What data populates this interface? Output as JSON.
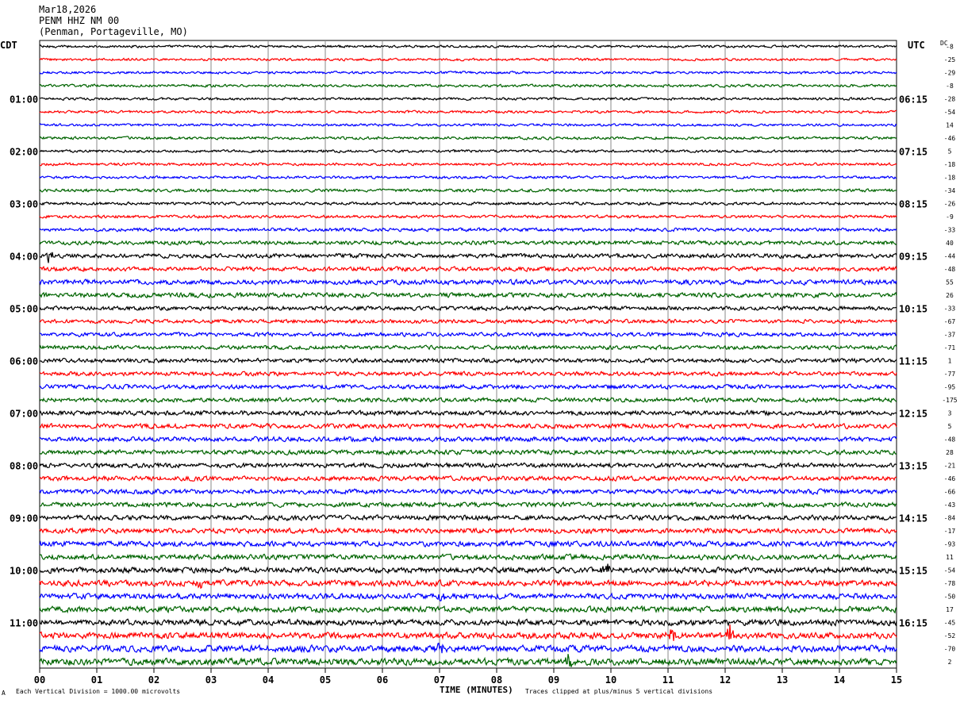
{
  "header": {
    "date": "Mar18,2026",
    "station": "PENM HHZ NM 00",
    "location": "(Penman, Portageville, MO)"
  },
  "left_tz": "CDT",
  "right_tz": "UTC",
  "dc_label": "DC",
  "footer": {
    "scale_note": "Each Vertical Division = 1000.00 microvolts",
    "xlabel": "TIME (MINUTES)",
    "clip_note": "Traces clipped at plus/minus 5 vertical divisions",
    "corner_mark": "A"
  },
  "colors": [
    "#000000",
    "#ff0000",
    "#0000ff",
    "#006400"
  ],
  "chart_data": {
    "type": "line",
    "x_ticks": [
      "00",
      "01",
      "02",
      "03",
      "04",
      "05",
      "06",
      "07",
      "08",
      "09",
      "10",
      "11",
      "12",
      "13",
      "14",
      "15"
    ],
    "xlim": [
      0,
      15
    ],
    "grid": true,
    "trace_count": 48,
    "left_hour_labels": [
      "01:00",
      "02:00",
      "03:00",
      "04:00",
      "05:00",
      "06:00",
      "07:00",
      "08:00",
      "09:00",
      "10:00",
      "11:00"
    ],
    "right_hour_labels": [
      "06:15",
      "07:15",
      "08:15",
      "09:15",
      "10:15",
      "11:15",
      "12:15",
      "13:15",
      "14:15",
      "15:15",
      "16:15"
    ],
    "dc_offsets": [
      "-8",
      "-25",
      "-29",
      "-8",
      "-28",
      "-54",
      "14",
      "-46",
      "5",
      "-18",
      "-18",
      "-34",
      "-26",
      "-9",
      "-33",
      "40",
      "-44",
      "-48",
      "55",
      "26",
      "-33",
      "-67",
      "-37",
      "-71",
      "1",
      "-77",
      "-95",
      "-175",
      "3",
      "5",
      "-48",
      "28",
      "-21",
      "-46",
      "-66",
      "-43",
      "-84",
      "-17",
      "-93",
      "11",
      "-54",
      "-78",
      "-50",
      "17",
      "-45",
      "-52",
      "-70",
      "2"
    ],
    "noise_amplitude": [
      1.6,
      1.6,
      1.6,
      1.8,
      1.7,
      1.7,
      1.6,
      1.8,
      1.7,
      1.7,
      1.7,
      2.0,
      1.9,
      1.9,
      2.2,
      2.6,
      2.8,
      2.8,
      3.2,
      3.0,
      2.6,
      2.5,
      2.6,
      2.6,
      2.7,
      2.7,
      2.8,
      2.8,
      3.0,
      3.0,
      3.1,
      3.0,
      3.0,
      3.0,
      3.0,
      3.0,
      3.2,
      3.2,
      3.4,
      3.4,
      3.6,
      3.8,
      3.6,
      3.8,
      3.8,
      4.0,
      4.2,
      4.4
    ],
    "events": [
      {
        "trace": 16,
        "minute": 0.15,
        "amplitude": 8
      },
      {
        "trace": 40,
        "minute": 9.9,
        "amplitude": 9
      },
      {
        "trace": 41,
        "minute": 2.8,
        "amplitude": 6
      },
      {
        "trace": 42,
        "minute": 7.05,
        "amplitude": 6
      },
      {
        "trace": 45,
        "minute": 11.05,
        "amplitude": 12
      },
      {
        "trace": 45,
        "minute": 12.1,
        "amplitude": 13
      },
      {
        "trace": 46,
        "minute": 7.0,
        "amplitude": 9
      },
      {
        "trace": 47,
        "minute": 9.25,
        "amplitude": 9
      }
    ]
  }
}
